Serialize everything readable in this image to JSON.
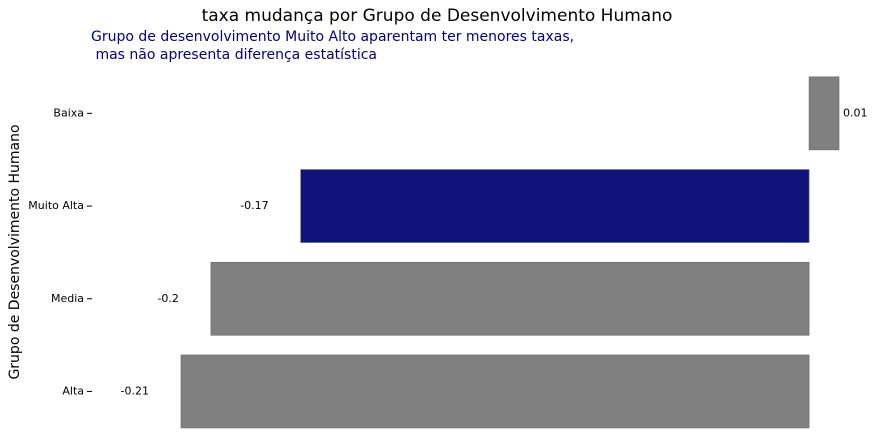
{
  "chart_data": {
    "type": "barh",
    "title": "taxa mudança por Grupo de Desenvolvimento Humano",
    "subtitle": "Grupo de desenvolvimento Muito Alto aparentam ter menores taxas,\n mas não apresenta diferença estatística",
    "y_label": "Grupo de Desenvolvimento Humano",
    "categories": [
      "Baixa",
      "Muito Alta",
      "Media",
      "Alta"
    ],
    "values": [
      0.01,
      -0.17,
      -0.2,
      -0.21
    ],
    "colors": [
      "#808080",
      "#10137a",
      "#808080",
      "#808080"
    ]
  }
}
